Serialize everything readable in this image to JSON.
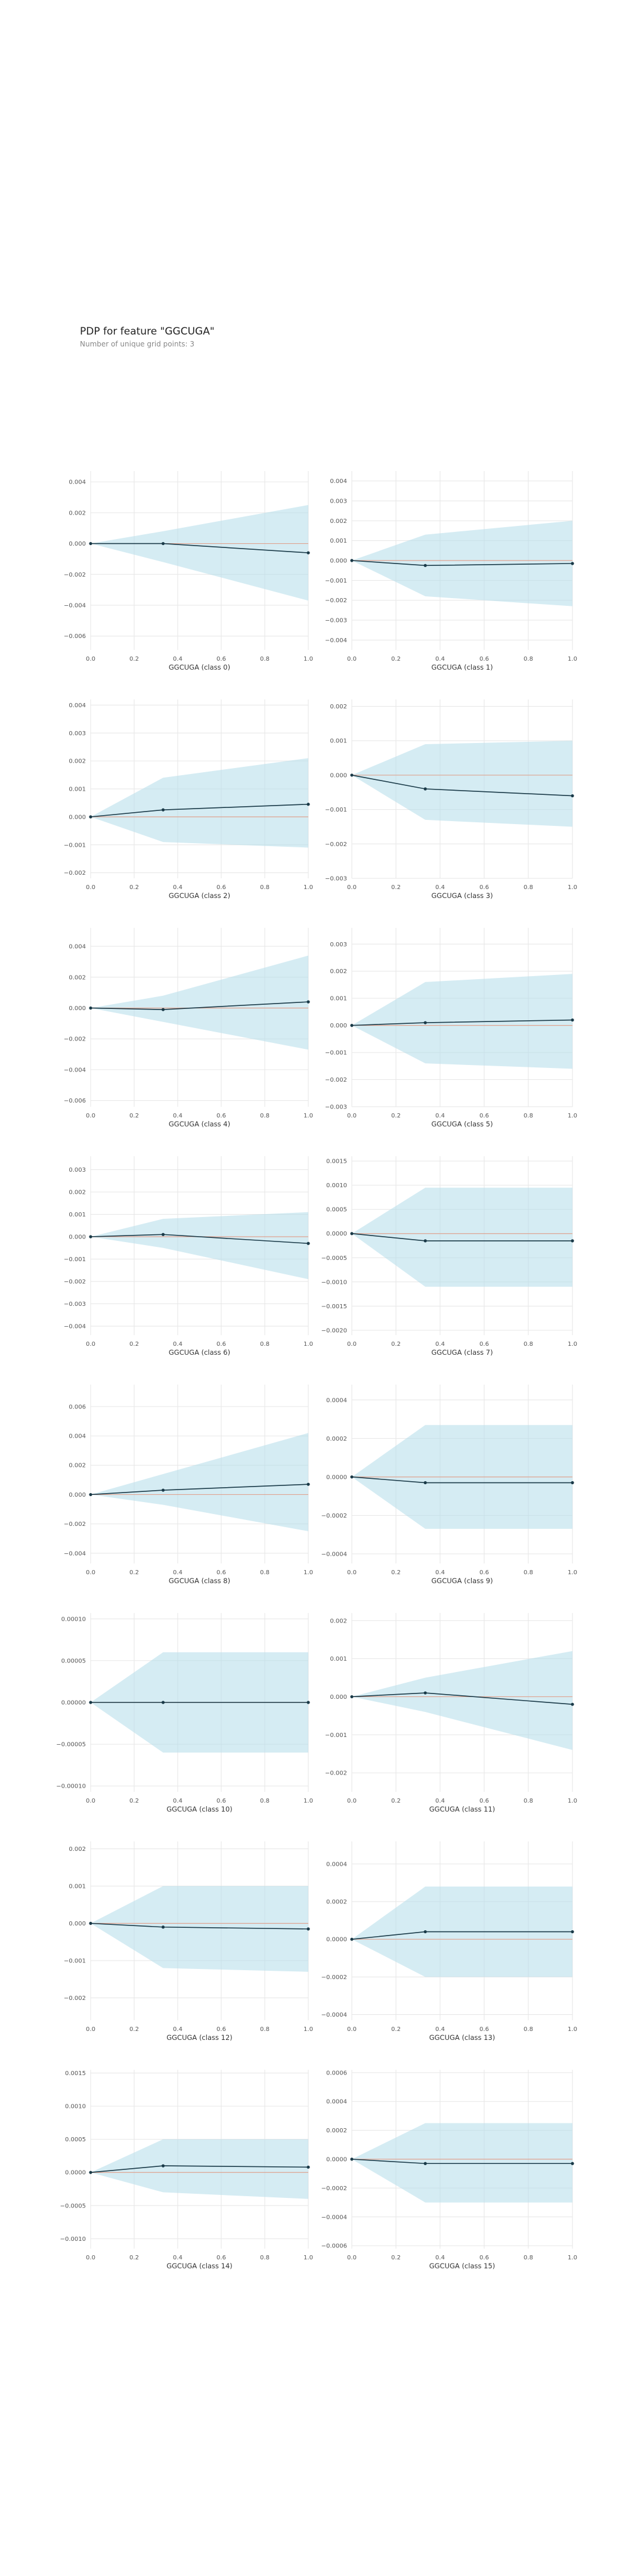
{
  "header": {
    "title": "PDP for feature \"GGCUGA\"",
    "subtitle": "Number of unique grid points: 3"
  },
  "colors": {
    "band": "#b3dcea",
    "line": "#1a3a48",
    "zero": "#e8896b",
    "grid": "#e6e6e6"
  },
  "chart_data": [
    {
      "type": "line",
      "xlabel": "GGCUGA (class 0)",
      "x": [
        0,
        0.333,
        1
      ],
      "y": [
        0,
        0,
        -0.0006
      ],
      "lower": [
        0,
        -0.0012,
        -0.0037
      ],
      "upper": [
        0,
        0.0008,
        0.0025
      ],
      "xticks": [
        0,
        0.2,
        0.4,
        0.6,
        0.8,
        1.0
      ],
      "xtick_labels": [
        "0.0",
        "0.2",
        "0.4",
        "0.6",
        "0.8",
        "1.0"
      ],
      "yticks": [
        0.004,
        0.002,
        0.0,
        -0.002,
        -0.004,
        -0.006
      ],
      "ytick_labels": [
        "0.004",
        "0.002",
        "0.000",
        "−0.002",
        "−0.004",
        "−0.006"
      ],
      "ylim": [
        -0.0069,
        0.0047
      ]
    },
    {
      "type": "line",
      "xlabel": "GGCUGA (class 1)",
      "x": [
        0,
        0.333,
        1
      ],
      "y": [
        0,
        -0.00025,
        -0.00015
      ],
      "lower": [
        0,
        -0.0018,
        -0.0023
      ],
      "upper": [
        0,
        0.0013,
        0.002
      ],
      "xticks": [
        0,
        0.2,
        0.4,
        0.6,
        0.8,
        1.0
      ],
      "xtick_labels": [
        "0.0",
        "0.2",
        "0.4",
        "0.6",
        "0.8",
        "1.0"
      ],
      "yticks": [
        0.004,
        0.003,
        0.002,
        0.001,
        0.0,
        -0.001,
        -0.002,
        -0.003,
        -0.004
      ],
      "ytick_labels": [
        "0.004",
        "0.003",
        "0.002",
        "0.001",
        "0.000",
        "−0.001",
        "−0.002",
        "−0.003",
        "−0.004"
      ],
      "ylim": [
        -0.0045,
        0.0045
      ]
    },
    {
      "type": "line",
      "xlabel": "GGCUGA (class 2)",
      "x": [
        0,
        0.333,
        1
      ],
      "y": [
        0,
        0.00025,
        0.00045
      ],
      "lower": [
        0,
        -0.0009,
        -0.0011
      ],
      "upper": [
        0,
        0.0014,
        0.0021
      ],
      "xticks": [
        0,
        0.2,
        0.4,
        0.6,
        0.8,
        1.0
      ],
      "xtick_labels": [
        "0.0",
        "0.2",
        "0.4",
        "0.6",
        "0.8",
        "1.0"
      ],
      "yticks": [
        0.004,
        0.003,
        0.002,
        0.001,
        0.0,
        -0.001,
        -0.002
      ],
      "ytick_labels": [
        "0.004",
        "0.003",
        "0.002",
        "0.001",
        "0.000",
        "−0.001",
        "−0.002"
      ],
      "ylim": [
        -0.0022,
        0.0042
      ]
    },
    {
      "type": "line",
      "xlabel": "GGCUGA (class 3)",
      "x": [
        0,
        0.333,
        1
      ],
      "y": [
        0,
        -0.0004,
        -0.0006
      ],
      "lower": [
        0,
        -0.0013,
        -0.0015
      ],
      "upper": [
        0,
        0.0009,
        0.001
      ],
      "xticks": [
        0,
        0.2,
        0.4,
        0.6,
        0.8,
        1.0
      ],
      "xtick_labels": [
        "0.0",
        "0.2",
        "0.4",
        "0.6",
        "0.8",
        "1.0"
      ],
      "yticks": [
        0.002,
        0.001,
        0.0,
        -0.001,
        -0.002,
        -0.003
      ],
      "ytick_labels": [
        "0.002",
        "0.001",
        "0.000",
        "−0.001",
        "−0.002",
        "−0.003"
      ],
      "ylim": [
        -0.003,
        0.0022
      ]
    },
    {
      "type": "line",
      "xlabel": "GGCUGA (class 4)",
      "x": [
        0,
        0.333,
        1
      ],
      "y": [
        0,
        -0.0001,
        0.0004
      ],
      "lower": [
        0,
        -0.0009,
        -0.0027
      ],
      "upper": [
        0,
        0.0008,
        0.0034
      ],
      "xticks": [
        0,
        0.2,
        0.4,
        0.6,
        0.8,
        1.0
      ],
      "xtick_labels": [
        "0.0",
        "0.2",
        "0.4",
        "0.6",
        "0.8",
        "1.0"
      ],
      "yticks": [
        0.004,
        0.002,
        0.0,
        -0.002,
        -0.004,
        -0.006
      ],
      "ytick_labels": [
        "0.004",
        "0.002",
        "0.000",
        "−0.002",
        "−0.004",
        "−0.006"
      ],
      "ylim": [
        -0.0064,
        0.0052
      ]
    },
    {
      "type": "line",
      "xlabel": "GGCUGA (class 5)",
      "x": [
        0,
        0.333,
        1
      ],
      "y": [
        0,
        0.0001,
        0.0002
      ],
      "lower": [
        0,
        -0.0014,
        -0.0016
      ],
      "upper": [
        0,
        0.0016,
        0.0019
      ],
      "xticks": [
        0,
        0.2,
        0.4,
        0.6,
        0.8,
        1.0
      ],
      "xtick_labels": [
        "0.0",
        "0.2",
        "0.4",
        "0.6",
        "0.8",
        "1.0"
      ],
      "yticks": [
        0.003,
        0.002,
        0.001,
        0.0,
        -0.001,
        -0.002,
        -0.003
      ],
      "ytick_labels": [
        "0.003",
        "0.002",
        "0.001",
        "0.000",
        "−0.001",
        "−0.002",
        "−0.003"
      ],
      "ylim": [
        -0.003,
        0.0036
      ]
    },
    {
      "type": "line",
      "xlabel": "GGCUGA (class 6)",
      "x": [
        0,
        0.333,
        1
      ],
      "y": [
        0,
        0.0001,
        -0.0003
      ],
      "lower": [
        0,
        -0.0005,
        -0.0019
      ],
      "upper": [
        0,
        0.0008,
        0.0011
      ],
      "xticks": [
        0,
        0.2,
        0.4,
        0.6,
        0.8,
        1.0
      ],
      "xtick_labels": [
        "0.0",
        "0.2",
        "0.4",
        "0.6",
        "0.8",
        "1.0"
      ],
      "yticks": [
        0.003,
        0.002,
        0.001,
        0.0,
        -0.001,
        -0.002,
        -0.003,
        -0.004
      ],
      "ytick_labels": [
        "0.003",
        "0.002",
        "0.001",
        "0.000",
        "−0.001",
        "−0.002",
        "−0.003",
        "−0.004"
      ],
      "ylim": [
        -0.0044,
        0.0036
      ]
    },
    {
      "type": "line",
      "xlabel": "GGCUGA (class 7)",
      "x": [
        0,
        0.333,
        1
      ],
      "y": [
        0,
        -0.00015,
        -0.00015
      ],
      "lower": [
        0,
        -0.0011,
        -0.0011
      ],
      "upper": [
        0,
        0.00095,
        0.00095
      ],
      "xticks": [
        0,
        0.2,
        0.4,
        0.6,
        0.8,
        1.0
      ],
      "xtick_labels": [
        "0.0",
        "0.2",
        "0.4",
        "0.6",
        "0.8",
        "1.0"
      ],
      "yticks": [
        0.0015,
        0.001,
        0.0005,
        0.0,
        -0.0005,
        -0.001,
        -0.0015,
        -0.002
      ],
      "ytick_labels": [
        "0.0015",
        "0.0010",
        "0.0005",
        "0.0000",
        "−0.0005",
        "−0.0010",
        "−0.0015",
        "−0.0020"
      ],
      "ylim": [
        -0.0021,
        0.0016
      ]
    },
    {
      "type": "line",
      "xlabel": "GGCUGA (class 8)",
      "x": [
        0,
        0.333,
        1
      ],
      "y": [
        0,
        0.0003,
        0.0007
      ],
      "lower": [
        0,
        -0.0007,
        -0.0025
      ],
      "upper": [
        0,
        0.0014,
        0.0042
      ],
      "xticks": [
        0,
        0.2,
        0.4,
        0.6,
        0.8,
        1.0
      ],
      "xtick_labels": [
        "0.0",
        "0.2",
        "0.4",
        "0.6",
        "0.8",
        "1.0"
      ],
      "yticks": [
        0.006,
        0.004,
        0.002,
        0.0,
        -0.002,
        -0.004
      ],
      "ytick_labels": [
        "0.006",
        "0.004",
        "0.002",
        "0.000",
        "−0.002",
        "−0.004"
      ],
      "ylim": [
        -0.0047,
        0.0075
      ]
    },
    {
      "type": "line",
      "xlabel": "GGCUGA (class 9)",
      "x": [
        0,
        0.333,
        1
      ],
      "y": [
        0,
        -3e-05,
        -3e-05
      ],
      "lower": [
        0,
        -0.00027,
        -0.00027
      ],
      "upper": [
        0,
        0.00027,
        0.00027
      ],
      "xticks": [
        0,
        0.2,
        0.4,
        0.6,
        0.8,
        1.0
      ],
      "xtick_labels": [
        "0.0",
        "0.2",
        "0.4",
        "0.6",
        "0.8",
        "1.0"
      ],
      "yticks": [
        0.0004,
        0.0002,
        0.0,
        -0.0002,
        -0.0004
      ],
      "ytick_labels": [
        "0.0004",
        "0.0002",
        "0.0000",
        "−0.0002",
        "−0.0004"
      ],
      "ylim": [
        -0.00045,
        0.00048
      ]
    },
    {
      "type": "line",
      "xlabel": "GGCUGA (class 10)",
      "x": [
        0,
        0.333,
        1
      ],
      "y": [
        0,
        0,
        0
      ],
      "lower": [
        0,
        -6e-05,
        -6e-05
      ],
      "upper": [
        0,
        6e-05,
        6e-05
      ],
      "xticks": [
        0,
        0.2,
        0.4,
        0.6,
        0.8,
        1.0
      ],
      "xtick_labels": [
        "0.0",
        "0.2",
        "0.4",
        "0.6",
        "0.8",
        "1.0"
      ],
      "yticks": [
        0.0001,
        5e-05,
        0.0,
        -5e-05,
        -0.0001
      ],
      "ytick_labels": [
        "0.00010",
        "0.00005",
        "0.00000",
        "−0.00005",
        "−0.00010"
      ],
      "ylim": [
        -0.000107,
        0.000107
      ]
    },
    {
      "type": "line",
      "xlabel": "GGCUGA (class 11)",
      "x": [
        0,
        0.333,
        1
      ],
      "y": [
        0,
        0.0001,
        -0.0002
      ],
      "lower": [
        0,
        -0.0004,
        -0.0014
      ],
      "upper": [
        0,
        0.0005,
        0.0012
      ],
      "xticks": [
        0,
        0.2,
        0.4,
        0.6,
        0.8,
        1.0
      ],
      "xtick_labels": [
        "0.0",
        "0.2",
        "0.4",
        "0.6",
        "0.8",
        "1.0"
      ],
      "yticks": [
        0.002,
        0.001,
        0.0,
        -0.001,
        -0.002
      ],
      "ytick_labels": [
        "0.002",
        "0.001",
        "0.000",
        "−0.001",
        "−0.002"
      ],
      "ylim": [
        -0.0025,
        0.0022
      ]
    },
    {
      "type": "line",
      "xlabel": "GGCUGA (class 12)",
      "x": [
        0,
        0.333,
        1
      ],
      "y": [
        0,
        -0.0001,
        -0.00015
      ],
      "lower": [
        0,
        -0.0012,
        -0.0013
      ],
      "upper": [
        0,
        0.001,
        0.001
      ],
      "xticks": [
        0,
        0.2,
        0.4,
        0.6,
        0.8,
        1.0
      ],
      "xtick_labels": [
        "0.0",
        "0.2",
        "0.4",
        "0.6",
        "0.8",
        "1.0"
      ],
      "yticks": [
        0.002,
        0.001,
        0.0,
        -0.001,
        -0.002
      ],
      "ytick_labels": [
        "0.002",
        "0.001",
        "0.000",
        "−0.001",
        "−0.002"
      ],
      "ylim": [
        -0.0026,
        0.0022
      ]
    },
    {
      "type": "line",
      "xlabel": "GGCUGA (class 13)",
      "x": [
        0,
        0.333,
        1
      ],
      "y": [
        0,
        4e-05,
        4e-05
      ],
      "lower": [
        0,
        -0.0002,
        -0.0002
      ],
      "upper": [
        0,
        0.00028,
        0.00028
      ],
      "xticks": [
        0,
        0.2,
        0.4,
        0.6,
        0.8,
        1.0
      ],
      "xtick_labels": [
        "0.0",
        "0.2",
        "0.4",
        "0.6",
        "0.8",
        "1.0"
      ],
      "yticks": [
        0.0004,
        0.0002,
        0.0,
        -0.0002,
        -0.0004
      ],
      "ytick_labels": [
        "0.0004",
        "0.0002",
        "0.0000",
        "−0.0002",
        "−0.0004"
      ],
      "ylim": [
        -0.00043,
        0.00052
      ]
    },
    {
      "type": "line",
      "xlabel": "GGCUGA (class 14)",
      "x": [
        0,
        0.333,
        1
      ],
      "y": [
        0,
        0.0001,
        8e-05
      ],
      "lower": [
        0,
        -0.0003,
        -0.0004
      ],
      "upper": [
        0,
        0.0005,
        0.0005
      ],
      "xticks": [
        0,
        0.2,
        0.4,
        0.6,
        0.8,
        1.0
      ],
      "xtick_labels": [
        "0.0",
        "0.2",
        "0.4",
        "0.6",
        "0.8",
        "1.0"
      ],
      "yticks": [
        0.0015,
        0.001,
        0.0005,
        0.0,
        -0.0005,
        -0.001
      ],
      "ytick_labels": [
        "0.0015",
        "0.0010",
        "0.0005",
        "0.0000",
        "−0.0005",
        "−0.0010"
      ],
      "ylim": [
        -0.00115,
        0.00155
      ]
    },
    {
      "type": "line",
      "xlabel": "GGCUGA (class 15)",
      "x": [
        0,
        0.333,
        1
      ],
      "y": [
        0,
        -3e-05,
        -3e-05
      ],
      "lower": [
        0,
        -0.0003,
        -0.0003
      ],
      "upper": [
        0,
        0.00025,
        0.00025
      ],
      "xticks": [
        0,
        0.2,
        0.4,
        0.6,
        0.8,
        1.0
      ],
      "xtick_labels": [
        "0.0",
        "0.2",
        "0.4",
        "0.6",
        "0.8",
        "1.0"
      ],
      "yticks": [
        0.0006,
        0.0004,
        0.0002,
        0.0,
        -0.0002,
        -0.0004,
        -0.0006
      ],
      "ytick_labels": [
        "0.0006",
        "0.0004",
        "0.0002",
        "0.0000",
        "−0.0002",
        "−0.0004",
        "−0.0006"
      ],
      "ylim": [
        -0.00062,
        0.00062
      ]
    }
  ]
}
